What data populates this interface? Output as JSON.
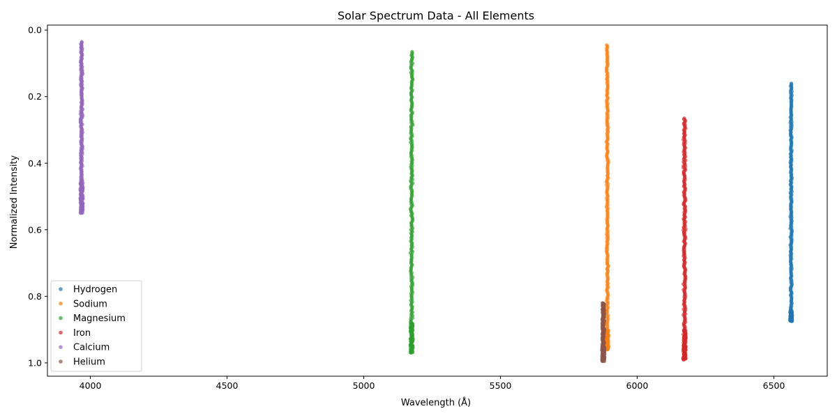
{
  "chart_data": {
    "type": "scatter",
    "title": "Solar Spectrum Data - All Elements",
    "xlabel": "Wavelength (Å)",
    "ylabel": "Normalized Intensity",
    "xlim": [
      3843,
      6695
    ],
    "ylim": [
      1.04,
      -0.015
    ],
    "y_inverted": true,
    "x_ticks": [
      4000,
      4500,
      5000,
      5500,
      6000,
      6500
    ],
    "x_tick_labels": [
      "4000",
      "4500",
      "5000",
      "5500",
      "6000",
      "6500"
    ],
    "y_ticks": [
      0.0,
      0.2,
      0.4,
      0.6,
      0.8,
      1.0
    ],
    "y_tick_labels": [
      "0.0",
      "0.2",
      "0.4",
      "0.6",
      "0.8",
      "1.0"
    ],
    "grid": false,
    "legend_position": "lower-left",
    "series": [
      {
        "name": "Hydrogen",
        "color": "#1f77b4",
        "center": 6563,
        "halfwidth": 4,
        "y": [
          0.16,
          0.875
        ],
        "dense_from": 0.84
      },
      {
        "name": "Sodium",
        "color": "#ff7f0e",
        "center": 5891,
        "halfwidth": 4,
        "y": [
          0.045,
          0.96
        ],
        "dense_from": 0.9
      },
      {
        "name": "Magnesium",
        "color": "#2ca02c",
        "center": 5175,
        "halfwidth": 5,
        "y": [
          0.065,
          0.97
        ],
        "dense_from": 0.88
      },
      {
        "name": "Iron",
        "color": "#d62728",
        "center": 6173,
        "halfwidth": 5,
        "y": [
          0.265,
          0.99
        ],
        "dense_from": 0.9
      },
      {
        "name": "Calcium",
        "color": "#9467bd",
        "center": 3968,
        "halfwidth": 5,
        "y": [
          0.035,
          0.55
        ],
        "dense_from": 0.45
      },
      {
        "name": "Helium",
        "color": "#8c564b",
        "center": 5876,
        "halfwidth": 5,
        "y": [
          0.82,
          0.995
        ],
        "dense_from": 0.95
      }
    ]
  }
}
